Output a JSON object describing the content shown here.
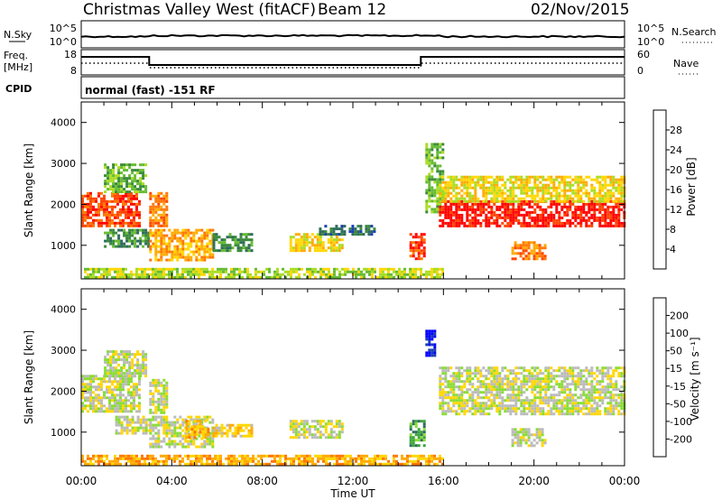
{
  "header": {
    "title": "Christmas Valley West (fitACF)",
    "beam": "Beam 12",
    "date": "02/Nov/2015"
  },
  "aux_panels": {
    "nsky_label": "N.Sky",
    "nsky_ticks": [
      "10^5",
      "10^0"
    ],
    "nsearch_label": "N.Search",
    "nsearch_ticks": [
      "10^5",
      "10^0"
    ],
    "freq_label_line1": "Freq.",
    "freq_label_line2": "[MHz]",
    "freq_ticks": [
      "18",
      "8"
    ],
    "nave_label": "Nave",
    "nave_ticks": [
      "60",
      "0"
    ],
    "cpid_label": "CPID",
    "cpid_text": "normal (fast) -151 RF"
  },
  "colors": {
    "power": [
      "#0000ff",
      "#1a3fb0",
      "#2e6b5e",
      "#3a8a3a",
      "#66bb33",
      "#aadd22",
      "#ffd700",
      "#ffaa00",
      "#ff7700",
      "#ff4400",
      "#ff0000"
    ],
    "velocity": [
      "#0000ff",
      "#1a3fb0",
      "#2e6b5e",
      "#3aa63a",
      "#88dd33",
      "#bbbbbb",
      "#ffd700",
      "#ffaa00",
      "#ff7700",
      "#ff4400",
      "#ff0000"
    ]
  },
  "chart_data": [
    {
      "type": "heatmap",
      "panel": "power",
      "ylabel": "Slant Range [km]",
      "yticks": [
        "4000",
        "3000",
        "2000",
        "1000"
      ],
      "ylim": [
        180,
        4500
      ],
      "x_hours": [
        0,
        24
      ],
      "colorbar_label": "Power [dB]",
      "colorbar_ticks": [
        "28",
        "24",
        "20",
        "16",
        "12",
        "8",
        "4"
      ],
      "regions": [
        {
          "t0": 0.0,
          "t1": 2.6,
          "r0": 1500,
          "r1": 2300,
          "level": 9
        },
        {
          "t0": 1.0,
          "t1": 2.8,
          "r0": 2300,
          "r1": 3000,
          "level": 4
        },
        {
          "t0": 3.0,
          "t1": 3.8,
          "r0": 1500,
          "r1": 2300,
          "level": 8
        },
        {
          "t0": 1.0,
          "t1": 3.0,
          "r0": 1000,
          "r1": 1400,
          "level": 3
        },
        {
          "t0": 3.0,
          "t1": 5.8,
          "r0": 650,
          "r1": 1400,
          "level": 7
        },
        {
          "t0": 5.8,
          "t1": 7.5,
          "r0": 900,
          "r1": 1300,
          "level": 3
        },
        {
          "t0": 9.2,
          "t1": 11.5,
          "r0": 900,
          "r1": 1300,
          "level": 6
        },
        {
          "t0": 10.5,
          "t1": 13.0,
          "r0": 1300,
          "r1": 1500,
          "level": 2
        },
        {
          "t0": 14.5,
          "t1": 15.2,
          "r0": 700,
          "r1": 1300,
          "level": 9
        },
        {
          "t0": 15.2,
          "t1": 16.0,
          "r0": 1800,
          "r1": 3500,
          "level": 4
        },
        {
          "t0": 15.8,
          "t1": 24.0,
          "r0": 1450,
          "r1": 2100,
          "level": 10
        },
        {
          "t0": 15.8,
          "t1": 24.0,
          "r0": 2100,
          "r1": 2700,
          "level": 6
        },
        {
          "t0": 19.0,
          "t1": 20.5,
          "r0": 700,
          "r1": 1100,
          "level": 8
        },
        {
          "t0": 0.0,
          "t1": 16.0,
          "r0": 200,
          "r1": 450,
          "level": 5
        }
      ]
    },
    {
      "type": "heatmap",
      "panel": "velocity",
      "ylabel": "Slant Range [km]",
      "yticks": [
        "4000",
        "3000",
        "2000",
        "1000"
      ],
      "ylim": [
        180,
        4500
      ],
      "x_hours": [
        0,
        24
      ],
      "xlabel": "Time UT",
      "xticks": [
        "00:00",
        "04:00",
        "08:00",
        "12:00",
        "16:00",
        "20:00",
        "00:00"
      ],
      "colorbar_label": "Velocity [m s⁻¹]",
      "colorbar_ticks": [
        "200",
        "100",
        "50",
        "15",
        "-15",
        "-50",
        "-100",
        "-200"
      ],
      "regions": [
        {
          "t0": 0.0,
          "t1": 2.6,
          "r0": 1500,
          "r1": 2400,
          "level": 5
        },
        {
          "t0": 1.0,
          "t1": 2.8,
          "r0": 2400,
          "r1": 3000,
          "level": 5
        },
        {
          "t0": 3.0,
          "t1": 3.8,
          "r0": 1500,
          "r1": 2300,
          "level": 5
        },
        {
          "t0": 1.5,
          "t1": 3.0,
          "r0": 1000,
          "r1": 1400,
          "level": 5
        },
        {
          "t0": 3.0,
          "t1": 5.8,
          "r0": 650,
          "r1": 1400,
          "level": 5
        },
        {
          "t0": 4.6,
          "t1": 5.6,
          "r0": 900,
          "r1": 1300,
          "level": 7
        },
        {
          "t0": 5.8,
          "t1": 7.5,
          "r0": 900,
          "r1": 1200,
          "level": 6
        },
        {
          "t0": 9.2,
          "t1": 11.5,
          "r0": 900,
          "r1": 1300,
          "level": 5
        },
        {
          "t0": 14.5,
          "t1": 15.2,
          "r0": 700,
          "r1": 1300,
          "level": 3
        },
        {
          "t0": 15.2,
          "t1": 15.6,
          "r0": 2900,
          "r1": 3500,
          "level": 0
        },
        {
          "t0": 15.8,
          "t1": 24.0,
          "r0": 1450,
          "r1": 2600,
          "level": 5
        },
        {
          "t0": 19.0,
          "t1": 20.5,
          "r0": 700,
          "r1": 1100,
          "level": 5
        },
        {
          "t0": 0.0,
          "t1": 16.0,
          "r0": 200,
          "r1": 450,
          "level": 7
        }
      ]
    }
  ]
}
